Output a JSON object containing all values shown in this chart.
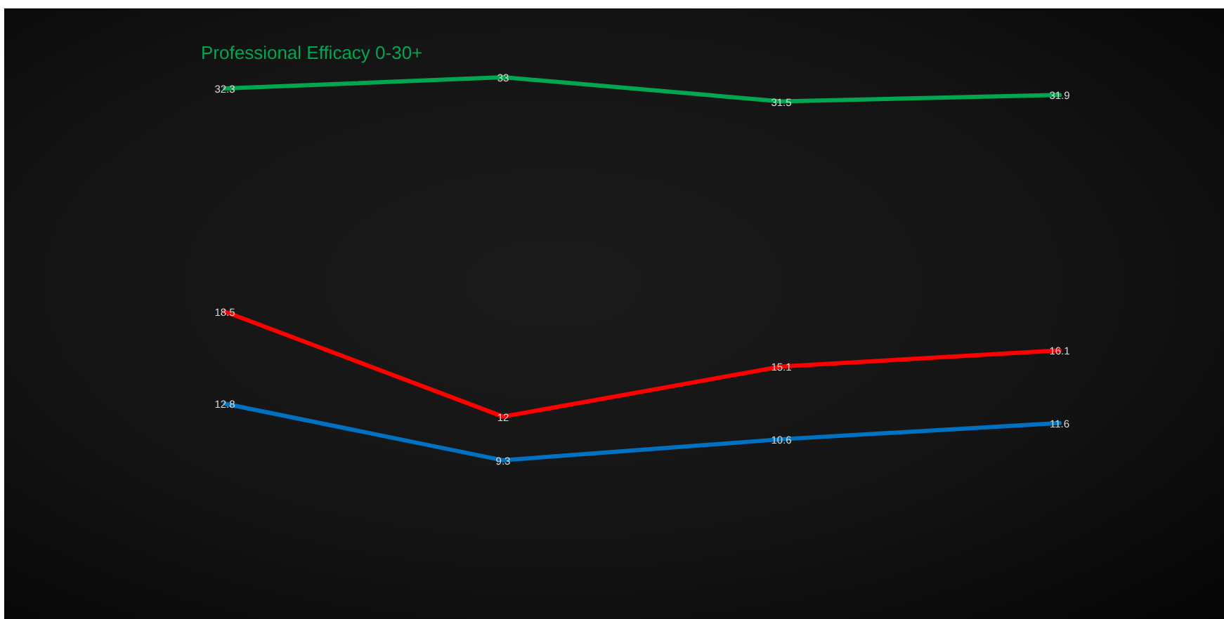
{
  "chart_data": {
    "type": "line",
    "categories": [
      null,
      null,
      null,
      null
    ],
    "series": [
      {
        "name": "Professional Efficacy 0-30+",
        "color": "#00a651",
        "values": [
          32.3,
          33,
          31.5,
          31.9
        ]
      },
      {
        "color": "#ff0000",
        "values": [
          18.5,
          12,
          15.1,
          16.1
        ]
      },
      {
        "color": "#0070c0",
        "values": [
          12.8,
          9.3,
          10.6,
          11.6
        ]
      }
    ],
    "data_labels": true,
    "marker": "none",
    "tick_labels": false
  }
}
